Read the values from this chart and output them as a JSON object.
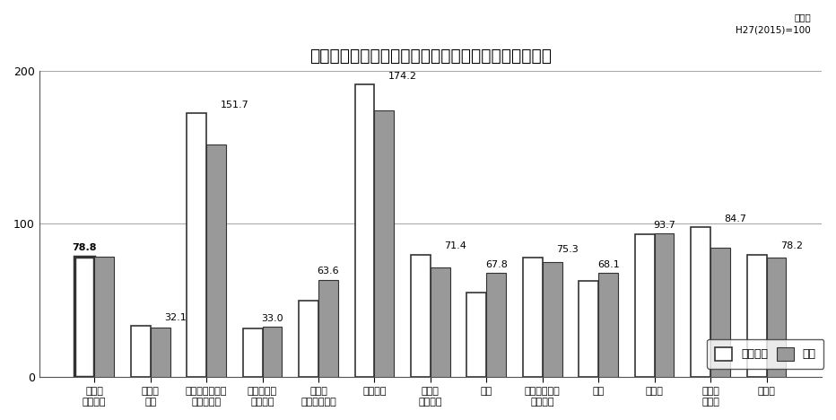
{
  "title": "業種別の生産指数（原指数）の当月と前年同月の比較",
  "subtitle": "原指数\nH27(2015)=100",
  "categories": [
    "鉱工業\n（総合）",
    "鉄鋼・\n金属",
    "汎用・生産用・\n業務用機械",
    "電子部品・\nデバイス",
    "電気・\n情報通信機械",
    "輸送機械",
    "窯業・\n土石製品",
    "化学",
    "パルプ・紙・\n紙加工品",
    "繊維",
    "食料品",
    "木材・\n木製品",
    "その他"
  ],
  "prev_year": [
    78.8,
    33.5,
    172.0,
    31.5,
    50.0,
    191.0,
    80.0,
    55.0,
    78.0,
    63.0,
    93.5,
    98.0,
    80.0
  ],
  "current": [
    78.8,
    32.1,
    151.7,
    33.0,
    63.6,
    174.2,
    71.4,
    67.8,
    75.3,
    68.1,
    93.7,
    84.7,
    78.2
  ],
  "bar_color_prev": "#ffffff",
  "bar_color_curr": "#999999",
  "bar_edgecolor": "#333333",
  "ylim": [
    0,
    200
  ],
  "yticks": [
    0,
    100,
    200
  ],
  "legend_prev": "前年同月",
  "legend_curr": "当月",
  "bg_color": "#ffffff",
  "grid_color": "#aaaaaa",
  "bar_width": 0.35,
  "label_fontsize": 8.0,
  "tick_fontsize": 8.0,
  "title_fontsize": 13.5
}
